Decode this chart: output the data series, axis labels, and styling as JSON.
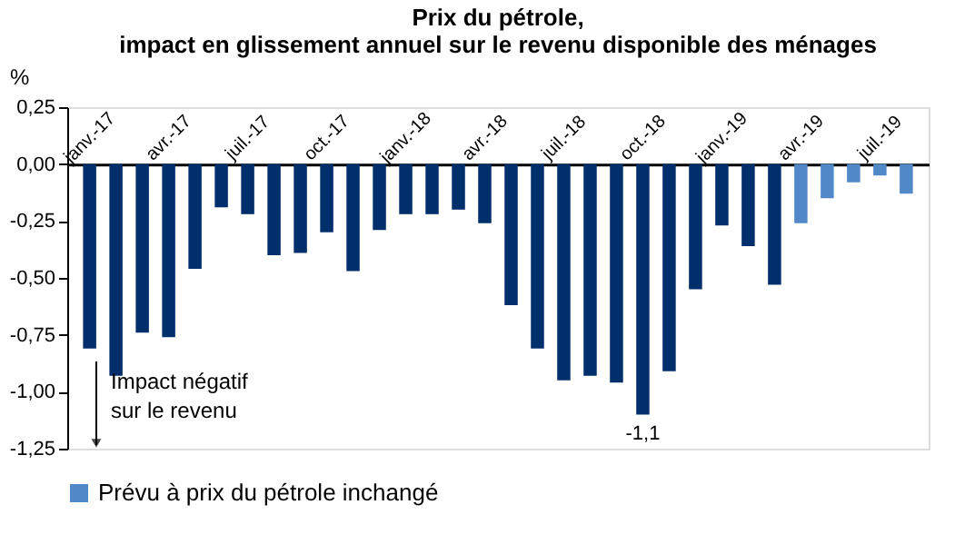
{
  "chart_data": {
    "type": "bar",
    "title": [
      "Prix du pétrole,",
      "impact en glissement annuel sur le revenu disponible des ménages"
    ],
    "ylabel": "%",
    "categories": [
      "janv.-17",
      null,
      null,
      "avr.-17",
      null,
      null,
      "juil.-17",
      null,
      null,
      "oct.-17",
      null,
      null,
      "janv.-18",
      null,
      null,
      "avr.-18",
      null,
      null,
      "juil.-18",
      null,
      null,
      "oct.-18",
      null,
      null,
      "janv.-19",
      null,
      null,
      "avr.-19",
      null,
      null,
      "juil.-19",
      null
    ],
    "series": [
      {
        "color": "#002f6c",
        "values": [
          -0.81,
          -0.93,
          -0.74,
          -0.76,
          -0.46,
          -0.19,
          -0.22,
          -0.4,
          -0.39,
          -0.3,
          -0.47,
          -0.29,
          -0.22,
          -0.22,
          -0.2,
          -0.26,
          -0.62,
          -0.81,
          -0.95,
          -0.93,
          -0.96,
          -1.1,
          -0.91,
          -0.55,
          -0.27,
          -0.36,
          -0.53,
          null,
          null,
          null,
          null,
          null
        ],
        "value_labels": [
          null,
          null,
          null,
          null,
          null,
          null,
          null,
          null,
          null,
          null,
          null,
          null,
          null,
          null,
          null,
          null,
          null,
          null,
          null,
          null,
          null,
          "-1,1",
          null,
          null,
          null,
          null,
          null,
          null,
          null,
          null,
          null,
          null
        ]
      },
      {
        "name": "Prévu à prix du pétrole inchangé",
        "color": "#5088c8",
        "values": [
          null,
          null,
          null,
          null,
          null,
          null,
          null,
          null,
          null,
          null,
          null,
          null,
          null,
          null,
          null,
          null,
          null,
          null,
          null,
          null,
          null,
          null,
          null,
          null,
          null,
          null,
          null,
          -0.26,
          -0.15,
          -0.08,
          -0.05,
          -0.13
        ]
      }
    ],
    "ylim": [
      -1.25,
      0.25
    ],
    "yticks": [
      {
        "value": 0.25,
        "label": "0,25"
      },
      {
        "value": 0,
        "label": "0,00"
      },
      {
        "value": -0.25,
        "label": "-0,25"
      },
      {
        "value": -0.5,
        "label": "-0,50"
      },
      {
        "value": -0.75,
        "label": "-0,75"
      },
      {
        "value": -1,
        "label": "-1,00"
      },
      {
        "value": -1.25,
        "label": "-1,25"
      }
    ],
    "grid": false,
    "legend": "bottom",
    "annotations": [
      "Impact négatif\nsur le revenu"
    ]
  }
}
